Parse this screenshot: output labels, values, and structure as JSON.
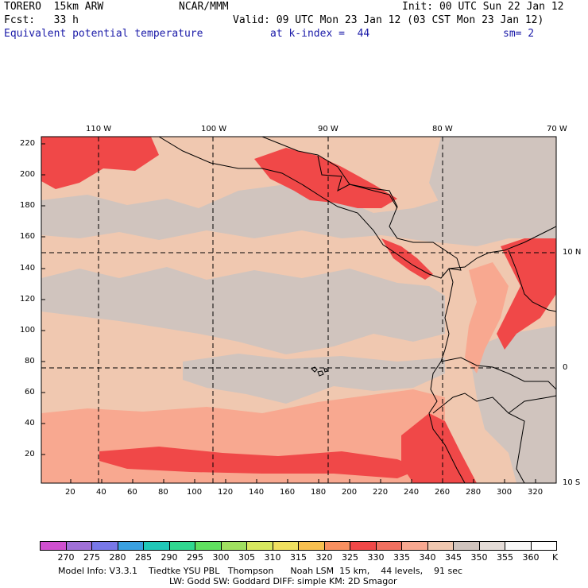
{
  "header": {
    "model": "TORERO  15km ARW",
    "center": "NCAR/MMM",
    "init": "Init: 00 UTC Sun 22 Jan 12",
    "fcst": "Fcst:   33 h",
    "valid": "Valid: 09 UTC Mon 23 Jan 12 (03 CST Mon 23 Jan 12)",
    "field": "Equivalent potential temperature",
    "level": "at k-index =  44",
    "smoothing": "sm= 2"
  },
  "map": {
    "top_lon_labels": [
      "110 W",
      "100 W",
      "90 W",
      "80 W",
      "70 W"
    ],
    "right_lat_labels": [
      "10 N",
      "0",
      "10 S"
    ],
    "y_ticks": [
      "220",
      "200",
      "180",
      "160",
      "140",
      "120",
      "100",
      "80",
      "60",
      "40",
      "20"
    ],
    "x_ticks": [
      "20",
      "40",
      "60",
      "80",
      "100",
      "120",
      "140",
      "160",
      "180",
      "200",
      "220",
      "240",
      "260",
      "280",
      "300",
      "320"
    ]
  },
  "colorbar": {
    "labels": [
      "270",
      "275",
      "280",
      "285",
      "290",
      "295",
      "300",
      "305",
      "310",
      "315",
      "320",
      "325",
      "330",
      "335",
      "340",
      "345",
      "350",
      "355",
      "360"
    ],
    "unit": "K",
    "colors": [
      "#d050d0",
      "#a070d8",
      "#7878e8",
      "#3aa0e0",
      "#20c8b8",
      "#30d890",
      "#60e060",
      "#a0e060",
      "#d8e860",
      "#f0e060",
      "#f8c050",
      "#f89060",
      "#f04848",
      "#f07060",
      "#f8a890",
      "#f0c8b0",
      "#d0c4be",
      "#e4dcd8",
      "#f8f8f8",
      "#ffffff"
    ]
  },
  "footer": {
    "line1": "Model Info: V3.3.1    Tiedtke YSU PBL   Thompson      Noah LSM  15 km,    44 levels,    91 sec",
    "line2": "LW: Godd SW: Goddard DIFF: simple KM: 2D Smagor"
  }
}
